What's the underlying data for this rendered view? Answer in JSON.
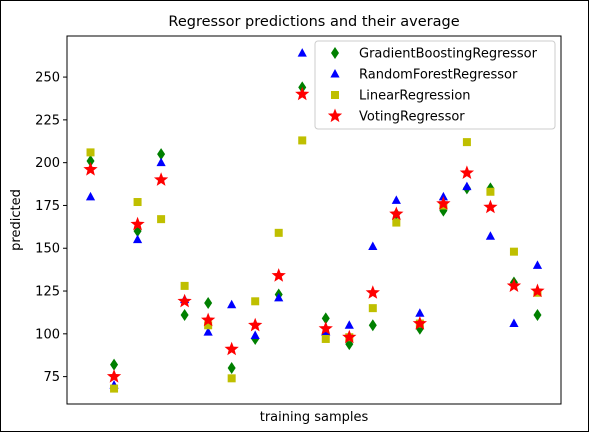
{
  "chart_data": {
    "type": "scatter",
    "title": "Regressor predictions and their average",
    "xlabel": "training samples",
    "ylabel": "predicted",
    "ylim": [
      59,
      274
    ],
    "xlim": [
      -1,
      20
    ],
    "yticks": [
      75,
      100,
      125,
      150,
      175,
      200,
      225,
      250
    ],
    "xticks_visible": false,
    "grid": false,
    "legend_position": "top-right",
    "x": [
      0,
      1,
      2,
      3,
      4,
      5,
      6,
      7,
      8,
      9,
      10,
      11,
      12,
      13,
      14,
      15,
      16,
      17,
      18,
      19
    ],
    "series": [
      {
        "name": "GradientBoostingRegressor",
        "marker": "diamond",
        "color": "#008000",
        "values": [
          201,
          82,
          160,
          205,
          111,
          118,
          80,
          97,
          123,
          244,
          109,
          94,
          105,
          170,
          103,
          172,
          185,
          185,
          130,
          111
        ]
      },
      {
        "name": "RandomForestRegressor",
        "marker": "triangle",
        "color": "#0000ff",
        "values": [
          180,
          70,
          155,
          200,
          120,
          101,
          117,
          99,
          121,
          264,
          101,
          105,
          151,
          178,
          112,
          180,
          186,
          157,
          106,
          140
        ]
      },
      {
        "name": "LinearRegression",
        "marker": "square",
        "color": "#bfbf00",
        "values": [
          206,
          68,
          177,
          167,
          128,
          105,
          74,
          119,
          159,
          213,
          97,
          98,
          115,
          165,
          106,
          175,
          212,
          183,
          148,
          124
        ]
      },
      {
        "name": "VotingRegressor",
        "marker": "star",
        "color": "#ff0000",
        "values": [
          196,
          75,
          164,
          190,
          119,
          108,
          91,
          105,
          134,
          240,
          103,
          98,
          124,
          170,
          106,
          176,
          194,
          174,
          128,
          125
        ]
      }
    ]
  }
}
